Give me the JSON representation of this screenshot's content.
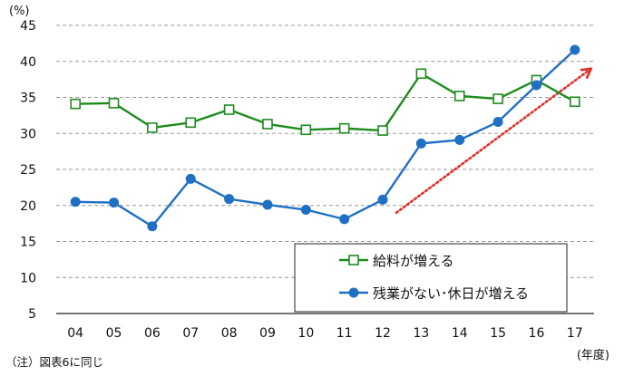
{
  "chart_data": {
    "type": "line",
    "ylabel_unit": "(%)",
    "xlabel_unit": "(年度)",
    "categories": [
      "04",
      "05",
      "06",
      "07",
      "08",
      "09",
      "10",
      "11",
      "12",
      "13",
      "14",
      "15",
      "16",
      "17"
    ],
    "ylim": [
      5,
      45
    ],
    "yticks": [
      5,
      10,
      15,
      20,
      25,
      30,
      35,
      40,
      45
    ],
    "grid": true,
    "legend_position": "bottom-right",
    "series": [
      {
        "name": "給料が増える",
        "color": "#1e8c1e",
        "marker": "open-square",
        "values": [
          34.1,
          34.2,
          30.8,
          31.5,
          33.3,
          31.3,
          30.5,
          30.7,
          30.4,
          38.3,
          35.2,
          34.8,
          37.4,
          34.4
        ]
      },
      {
        "name": "残業がない･休日が増える",
        "color": "#1f6fc4",
        "marker": "filled-circle",
        "values": [
          20.5,
          20.4,
          17.1,
          23.7,
          20.9,
          20.1,
          19.4,
          18.1,
          20.8,
          28.6,
          29.1,
          31.6,
          36.7,
          41.6
        ]
      }
    ],
    "annotation": {
      "type": "dotted-arrow",
      "color": "#e0302a",
      "from": [
        "12",
        19.0
      ],
      "to": [
        "17",
        39.0
      ]
    },
    "note": "（注）図表6に同じ"
  }
}
